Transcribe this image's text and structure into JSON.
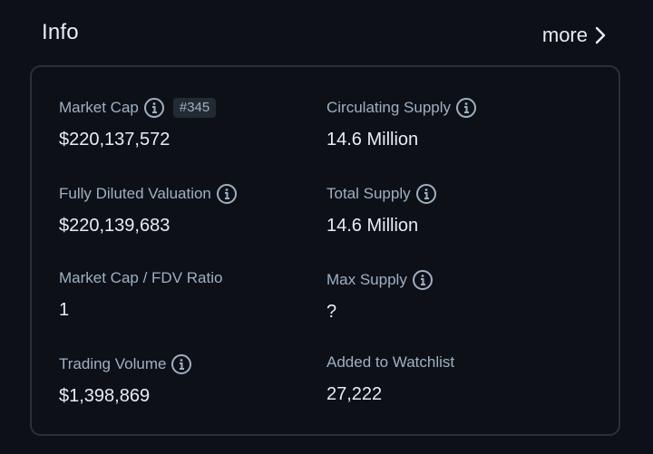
{
  "header": {
    "title": "Info",
    "more_label": "more"
  },
  "stats": {
    "market_cap": {
      "label": "Market Cap",
      "rank": "#345",
      "value": "$220,137,572"
    },
    "circulating_supply": {
      "label": "Circulating Supply",
      "value": "14.6 Million"
    },
    "fdv": {
      "label": "Fully Diluted Valuation",
      "value": "$220,139,683"
    },
    "total_supply": {
      "label": "Total Supply",
      "value": "14.6 Million"
    },
    "mcap_fdv_ratio": {
      "label": "Market Cap / FDV Ratio",
      "value": "1"
    },
    "max_supply": {
      "label": "Max Supply",
      "value": "?"
    },
    "trading_volume": {
      "label": "Trading Volume",
      "value": "$1,398,869"
    },
    "watchlist": {
      "label": "Added to Watchlist",
      "value": "27,222"
    }
  },
  "icons": {
    "info": "info-circle-icon",
    "more": "chevron-right-icon"
  },
  "colors": {
    "background": "#0d1117",
    "card_border": "#2a3038",
    "label": "#9fb0c3",
    "value": "#e6edf3",
    "badge_bg": "#222a33"
  }
}
